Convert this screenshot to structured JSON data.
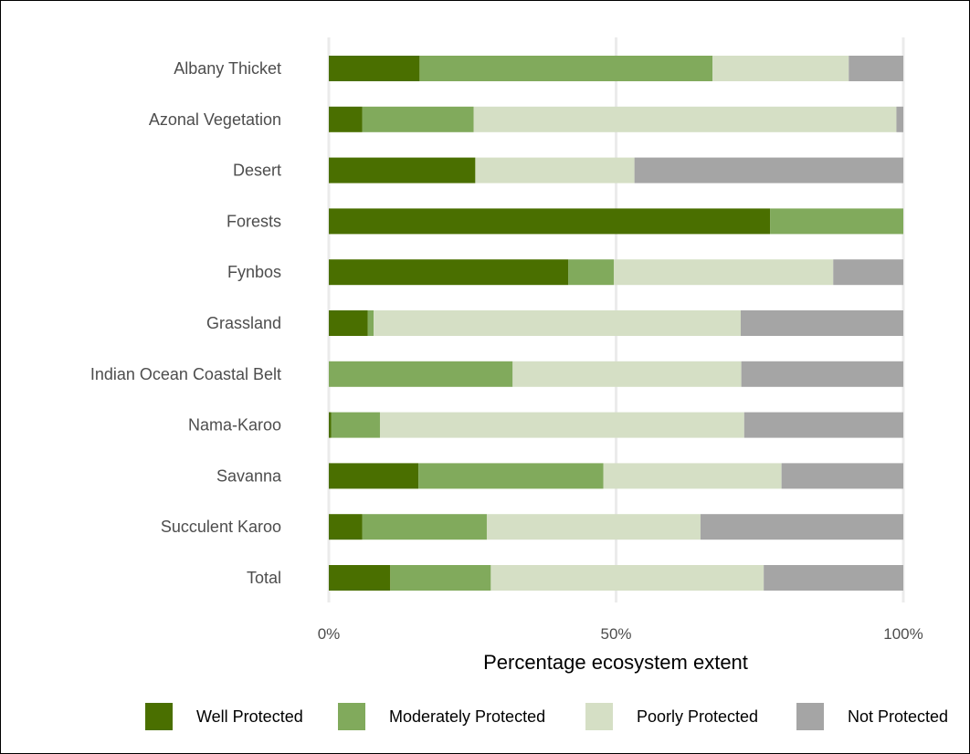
{
  "chart_data": {
    "type": "bar",
    "orientation": "horizontal",
    "stacked": true,
    "title": "",
    "xlabel": "Percentage ecosystem extent",
    "ylabel": "",
    "xlim": [
      0,
      100
    ],
    "x_ticks": [
      0,
      50,
      100
    ],
    "x_tick_labels": [
      "0%",
      "50%",
      "100%"
    ],
    "grid": "vertical major lines",
    "legend_position": "bottom",
    "categories": [
      "Albany Thicket",
      "Azonal Vegetation",
      "Desert",
      "Forests",
      "Fynbos",
      "Grassland",
      "Indian Ocean Coastal Belt",
      "Nama-Karoo",
      "Savanna",
      "Succulent Karoo",
      "Total"
    ],
    "series": [
      {
        "name": "Well Protected",
        "color": "#4a6f00",
        "values": [
          15.8,
          5.8,
          25.5,
          76.8,
          41.7,
          6.8,
          0.0,
          0.4,
          15.6,
          5.8,
          10.7
        ]
      },
      {
        "name": "Moderately Protected",
        "color": "#81aa5c",
        "values": [
          51.0,
          19.4,
          0.0,
          23.2,
          7.9,
          1.0,
          32.0,
          8.5,
          32.2,
          21.7,
          17.5
        ]
      },
      {
        "name": "Poorly Protected",
        "color": "#d5dfc5",
        "values": [
          23.7,
          73.6,
          27.7,
          0.0,
          38.2,
          63.9,
          39.8,
          63.4,
          31.0,
          37.2,
          47.5
        ]
      },
      {
        "name": "Not Protected",
        "color": "#a5a5a5",
        "values": [
          9.5,
          1.2,
          46.8,
          0.0,
          12.2,
          28.3,
          28.2,
          27.7,
          21.2,
          35.3,
          24.3
        ]
      }
    ]
  }
}
